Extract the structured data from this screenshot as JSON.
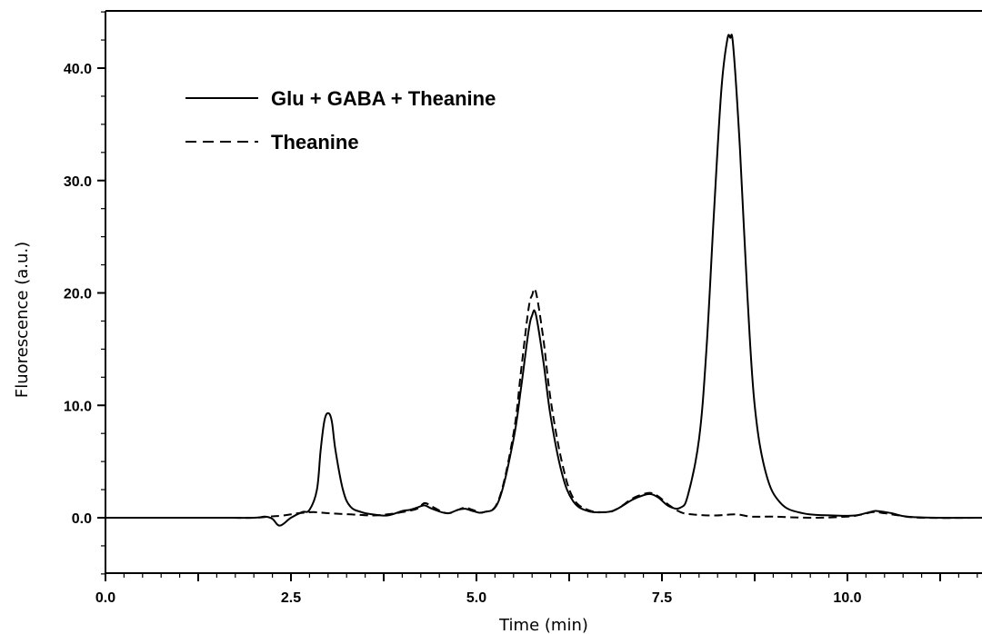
{
  "chart_data": {
    "type": "line",
    "xlabel": "Time (min)",
    "ylabel": "Fluorescence (a.u.)",
    "xlim": [
      0,
      11.9
    ],
    "ylim": [
      -5,
      45
    ],
    "x_ticks": [
      0.0,
      2.5,
      5.0,
      7.5,
      10.0
    ],
    "x_tick_labels": [
      "0.0",
      "2.5",
      "5.0",
      "7.5",
      "10.0"
    ],
    "y_ticks": [
      0.0,
      10.0,
      20.0,
      30.0,
      40.0
    ],
    "y_tick_labels": [
      "0.0",
      "10.0",
      "20.0",
      "30.0",
      "40.0"
    ],
    "grid": false,
    "legend_position": "top-left",
    "series": [
      {
        "name": "Glu + GABA + Theanine",
        "style": "solid",
        "color": "#000000",
        "x": [
          0.0,
          1.5,
          2.0,
          2.15,
          2.25,
          2.35,
          2.5,
          2.65,
          2.75,
          2.85,
          2.9,
          2.95,
          3.0,
          3.05,
          3.1,
          3.2,
          3.3,
          3.45,
          3.6,
          3.8,
          4.0,
          4.1,
          4.2,
          4.3,
          4.4,
          4.6,
          4.75,
          4.85,
          4.95,
          5.1,
          5.3,
          5.5,
          5.6,
          5.7,
          5.75,
          5.8,
          5.9,
          6.0,
          6.15,
          6.3,
          6.5,
          6.75,
          6.9,
          7.1,
          7.25,
          7.35,
          7.45,
          7.6,
          7.75,
          7.85,
          8.0,
          8.1,
          8.2,
          8.3,
          8.38,
          8.42,
          8.46,
          8.55,
          8.65,
          8.75,
          8.9,
          9.1,
          9.4,
          9.8,
          10.1,
          10.3,
          10.4,
          10.6,
          10.8,
          11.2,
          11.9
        ],
        "y": [
          0.0,
          0.0,
          0.0,
          0.1,
          -0.1,
          -0.7,
          0.0,
          0.5,
          0.7,
          2.5,
          6.0,
          8.6,
          9.3,
          8.6,
          6.0,
          2.5,
          1.0,
          0.5,
          0.3,
          0.2,
          0.6,
          0.7,
          0.9,
          1.1,
          0.8,
          0.4,
          0.7,
          0.8,
          0.6,
          0.5,
          1.5,
          7.0,
          11.5,
          16.5,
          18.0,
          18.1,
          14.0,
          9.0,
          4.0,
          1.5,
          0.6,
          0.5,
          0.8,
          1.6,
          2.0,
          2.1,
          1.8,
          1.0,
          0.9,
          2.0,
          7.0,
          15.0,
          27.0,
          38.0,
          42.5,
          42.7,
          42.0,
          33.0,
          20.0,
          10.0,
          4.0,
          1.3,
          0.4,
          0.2,
          0.2,
          0.5,
          0.6,
          0.4,
          0.1,
          0.0,
          0.0
        ]
      },
      {
        "name": "Theanine",
        "style": "dashed",
        "color": "#000000",
        "x": [
          0.0,
          1.5,
          2.0,
          2.2,
          2.4,
          2.6,
          2.8,
          3.0,
          3.3,
          3.6,
          3.8,
          4.0,
          4.2,
          4.3,
          4.4,
          4.6,
          4.75,
          4.85,
          4.95,
          5.1,
          5.3,
          5.5,
          5.6,
          5.7,
          5.75,
          5.8,
          5.9,
          6.0,
          6.15,
          6.3,
          6.5,
          6.75,
          6.9,
          7.1,
          7.25,
          7.35,
          7.45,
          7.6,
          7.75,
          7.9,
          8.2,
          8.5,
          8.7,
          9.0,
          9.5,
          10.0,
          10.2,
          10.35,
          10.5,
          10.7,
          11.0,
          11.9
        ],
        "y": [
          0.0,
          0.0,
          0.0,
          0.1,
          0.2,
          0.4,
          0.5,
          0.4,
          0.3,
          0.2,
          0.3,
          0.5,
          0.8,
          1.3,
          1.0,
          0.4,
          0.7,
          0.9,
          0.7,
          0.5,
          1.6,
          7.5,
          13.0,
          18.5,
          19.8,
          20.1,
          16.0,
          10.5,
          5.0,
          1.8,
          0.7,
          0.5,
          0.8,
          1.7,
          2.1,
          2.2,
          1.9,
          1.1,
          0.5,
          0.3,
          0.2,
          0.3,
          0.1,
          0.1,
          0.0,
          0.1,
          0.3,
          0.5,
          0.4,
          0.2,
          0.0,
          0.0
        ]
      }
    ]
  }
}
